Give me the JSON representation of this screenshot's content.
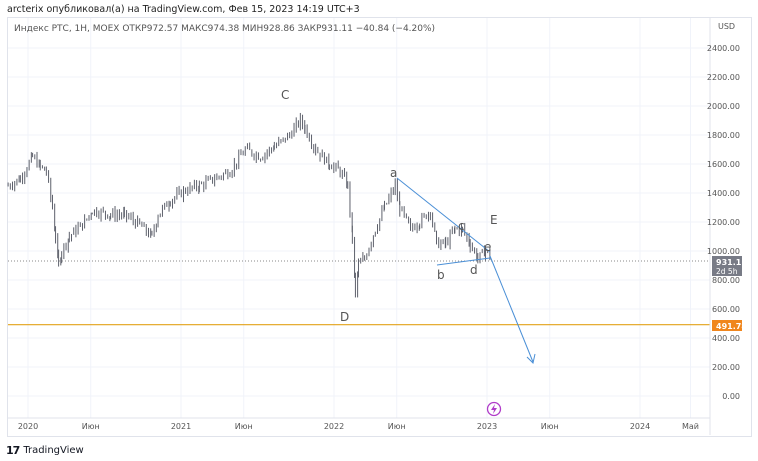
{
  "publisher_line": "arcterix опубликовал(а) на TradingView.com, Фев 15, 2023 14:19 UTC+3",
  "legend": "Индекс РТС, 1Н, MOEX  ОТКР972.57  МАКС974.38  МИН928.86  ЗАКР931.11  −40.84 (−4.20%)",
  "brand": "TradingView",
  "colors": {
    "bars": "#5d606b",
    "level": "#e3a21a",
    "projection": "#4a8fd6",
    "last_price_bg": "#787b86"
  },
  "chart_data": {
    "type": "line",
    "title": "Индекс РТС, 1Н, MOEX",
    "currency": "USD",
    "ylim": [
      -100,
      2550
    ],
    "yticks": [
      0,
      200,
      400,
      600,
      800,
      1000,
      1200,
      1400,
      1600,
      1800,
      2000,
      2200,
      2400
    ],
    "ytick_labels": [
      "0.00",
      "200.00",
      "400.00",
      "600.00",
      "800.00",
      "1000.00",
      "1200.00",
      "1400.00",
      "1600.00",
      "1800.00",
      "2000.00",
      "2200.00",
      "2400.00"
    ],
    "xlim": [
      2019.87,
      2024.45
    ],
    "xticks": [
      2020,
      2020.41,
      2021,
      2021.41,
      2022,
      2022.41,
      2023,
      2023.41,
      2024,
      2024.33
    ],
    "xtick_labels": [
      "2020",
      "Июн",
      "2021",
      "Июн",
      "2022",
      "Июн",
      "2023",
      "Июн",
      "2024",
      "Май"
    ],
    "series": [
      {
        "name": "Индекс РТС",
        "points": [
          [
            2019.87,
            1450
          ],
          [
            2019.95,
            1500
          ],
          [
            2020.03,
            1650
          ],
          [
            2020.08,
            1580
          ],
          [
            2020.12,
            1550
          ],
          [
            2020.16,
            1300
          ],
          [
            2020.18,
            1100
          ],
          [
            2020.2,
            900
          ],
          [
            2020.22,
            1000
          ],
          [
            2020.27,
            1100
          ],
          [
            2020.37,
            1200
          ],
          [
            2020.42,
            1280
          ],
          [
            2020.54,
            1250
          ],
          [
            2020.63,
            1250
          ],
          [
            2020.73,
            1180
          ],
          [
            2020.81,
            1100
          ],
          [
            2020.85,
            1250
          ],
          [
            2020.93,
            1350
          ],
          [
            2021.03,
            1420
          ],
          [
            2021.12,
            1450
          ],
          [
            2021.22,
            1500
          ],
          [
            2021.32,
            1550
          ],
          [
            2021.42,
            1700
          ],
          [
            2021.52,
            1650
          ],
          [
            2021.61,
            1720
          ],
          [
            2021.71,
            1800
          ],
          [
            2021.78,
            1900
          ],
          [
            2021.81,
            1850
          ],
          [
            2021.88,
            1700
          ],
          [
            2021.97,
            1600
          ],
          [
            2022.04,
            1550
          ],
          [
            2022.09,
            1450
          ],
          [
            2022.12,
            1100
          ],
          [
            2022.14,
            700
          ],
          [
            2022.16,
            900
          ],
          [
            2022.2,
            950
          ],
          [
            2022.27,
            1150
          ],
          [
            2022.33,
            1300
          ],
          [
            2022.4,
            1450
          ],
          [
            2022.43,
            1300
          ],
          [
            2022.5,
            1150
          ],
          [
            2022.56,
            1200
          ],
          [
            2022.63,
            1280
          ],
          [
            2022.67,
            1050
          ],
          [
            2022.73,
            1050
          ],
          [
            2022.79,
            1150
          ],
          [
            2022.84,
            1150
          ],
          [
            2022.89,
            1050
          ],
          [
            2022.94,
            950
          ],
          [
            2022.99,
            1000
          ],
          [
            2023.03,
            960
          ]
        ]
      }
    ],
    "last_price": {
      "value": "931.11",
      "countdown": "2d 5h"
    },
    "horizontal_level": {
      "value": 491.78,
      "label": "491.78"
    },
    "wave_labels": [
      "C",
      "D",
      "a",
      "b",
      "c",
      "d",
      "e",
      "E"
    ],
    "projection_target": [
      2023.38,
      230
    ]
  }
}
